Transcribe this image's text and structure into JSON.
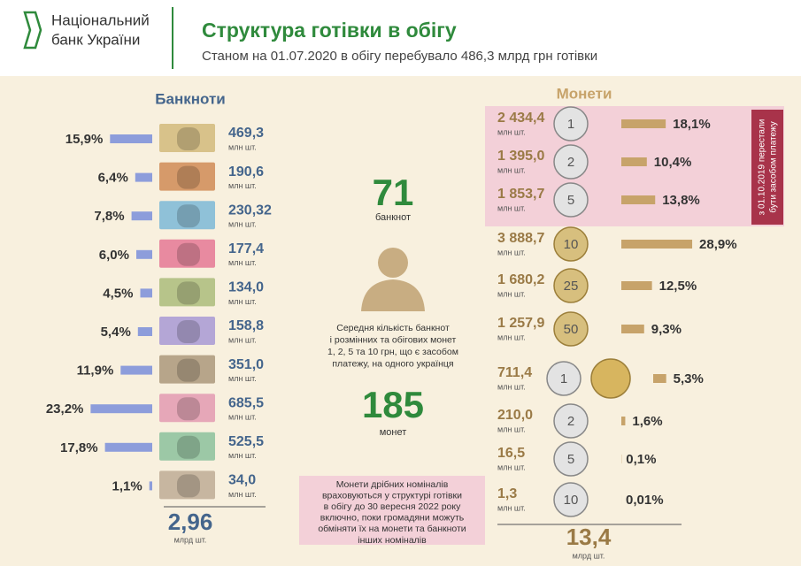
{
  "header": {
    "logo": [
      "Національний",
      "банк України"
    ],
    "title": "Структура готівки в обігу",
    "subtitle": "Станом на 01.07.2020 в обігу перебувало 486,3 млрд грн готівки"
  },
  "banknotes": {
    "title": "Банкноти",
    "unit": "млн шт.",
    "rows": [
      {
        "share": 15.9,
        "share_label": "15,9%",
        "count": "469,3"
      },
      {
        "share": 6.4,
        "share_label": "6,4%",
        "count": "190,6"
      },
      {
        "share": 7.8,
        "share_label": "7,8%",
        "count": "230,32"
      },
      {
        "share": 6.0,
        "share_label": "6,0%",
        "count": "177,4"
      },
      {
        "share": 4.5,
        "share_label": "4,5%",
        "count": "134,0"
      },
      {
        "share": 5.4,
        "share_label": "5,4%",
        "count": "158,8"
      },
      {
        "share": 11.9,
        "share_label": "11,9%",
        "count": "351,0"
      },
      {
        "share": 23.2,
        "share_label": "23,2%",
        "count": "685,5"
      },
      {
        "share": 17.8,
        "share_label": "17,8%",
        "count": "525,5"
      },
      {
        "share": 1.1,
        "share_label": "1,1%",
        "count": "34,0"
      }
    ],
    "total": "2,96",
    "total_unit": "млрд шт."
  },
  "middle": {
    "banknotes_avg": "71",
    "banknotes_label": "банкнот",
    "description": [
      "Середня кількість банкнот",
      "і розмінних та обігових монет",
      "1, 2, 5 та 10 грн, що є засобом",
      "платежу, на одного українця"
    ],
    "coins_avg": "185",
    "coins_label": "монет",
    "note": [
      "Монети дрібних номіналів",
      "враховуються у структурі готівки",
      "в обігу до 30 вересня 2022 року",
      "включно, поки громадяни можуть",
      "обміняти їх на монети та банкноти",
      "інших номіналів"
    ]
  },
  "coins": {
    "title": "Монети",
    "unit": "млн шт.",
    "side_note": [
      "з 01.10.2019 перестали",
      "бути засобом платежу"
    ],
    "rows": [
      {
        "face": "1",
        "share": 18.1,
        "share_label": "18,1%",
        "count": "2 434,4"
      },
      {
        "face": "2",
        "share": 10.4,
        "share_label": "10,4%",
        "count": "1 395,0"
      },
      {
        "face": "5",
        "share": 13.8,
        "share_label": "13,8%",
        "count": "1 853,7"
      },
      {
        "face": "10",
        "share": 28.9,
        "share_label": "28,9%",
        "count": "3 888,7"
      },
      {
        "face": "25",
        "share": 12.5,
        "share_label": "12,5%",
        "count": "1 680,2"
      },
      {
        "face": "50",
        "share": 9.3,
        "share_label": "9,3%",
        "count": "1 257,9"
      },
      {
        "face": "1",
        "share": 5.3,
        "share_label": "5,3%",
        "count": "711,4"
      },
      {
        "face": "2",
        "share": 1.6,
        "share_label": "1,6%",
        "count": "210,0"
      },
      {
        "face": "5",
        "share": 0.1,
        "share_label": "0,1%",
        "count": "16,5"
      },
      {
        "face": "10",
        "share": 0.01,
        "share_label": "0,01%",
        "count": "1,3"
      }
    ],
    "total": "13,4",
    "total_unit": "млрд шт."
  }
}
